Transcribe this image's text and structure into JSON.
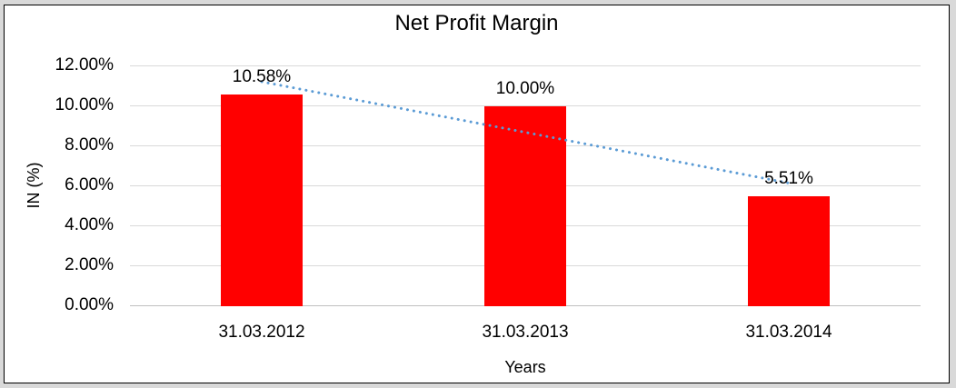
{
  "window": {
    "background_color": "#d9d9d9",
    "chart_background_color": "#ffffff",
    "chart_border_color": "#000000"
  },
  "chart_data": {
    "type": "bar",
    "title": "Net Profit Margin",
    "categories": [
      "31.03.2012",
      "31.03.2013",
      "31.03.2014"
    ],
    "values": [
      10.58,
      10.0,
      5.51
    ],
    "data_labels": [
      "10.58%",
      "10.00%",
      "5.51%"
    ],
    "xlabel": "Years",
    "ylabel": "IN (%)",
    "ylim": [
      0,
      12
    ],
    "ytick_step": 2,
    "ytick_labels": [
      "0.00%",
      "2.00%",
      "4.00%",
      "6.00%",
      "8.00%",
      "10.00%",
      "12.00%"
    ],
    "grid": true,
    "legend": "none",
    "bar_color": "#ff0000",
    "gridline_color": "#d9d9d9",
    "axisline_color": "#bfbfbf",
    "text_color": "#000000",
    "trendline": {
      "type": "linear",
      "style": "dotted",
      "color": "#5b9bd5",
      "fitted_values": [
        11.23,
        8.7,
        6.16
      ]
    }
  }
}
